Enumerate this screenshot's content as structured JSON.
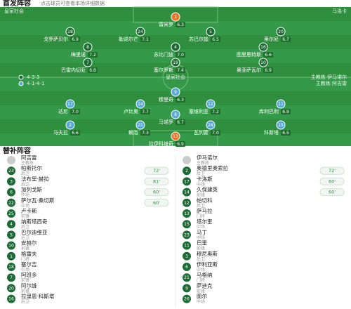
{
  "header": {
    "title": "首发阵容",
    "subtitle": "点击球员可查看本场详细数据"
  },
  "pitch": {
    "home_team": "皇家社会",
    "away_team": "马洛卡",
    "home_formation": "4-3-3",
    "away_formation": "4-1-4-1",
    "home_coach": "主教练 伊马诺尔",
    "away_coach": "主教练 阿吉雷",
    "center": "皇家社会",
    "home_lines": [
      [
        {
          "number": "1",
          "name": "雷米罗",
          "rating": "6.3"
        }
      ],
      [
        {
          "number": "18",
          "name": "戈罗萨贝尔",
          "rating": "6.9"
        },
        {
          "number": "24",
          "name": "勒诺尔芒",
          "rating": "7.1"
        },
        {
          "number": "5",
          "name": "苏巴尔迪",
          "rating": "6.5"
        },
        {
          "number": "20",
          "name": "蒂尔尼",
          "rating": "6.7"
        }
      ],
      [
        {
          "number": "8",
          "name": "梅里诺",
          "rating": "7.2"
        },
        {
          "number": "4",
          "name": "苏比门迪",
          "rating": "7.0"
        },
        {
          "number": "16",
          "name": "图里恩特斯",
          "rating": "6.6"
        }
      ],
      [
        {
          "number": "7",
          "name": "巴雷内切亚",
          "rating": "6.8"
        },
        {
          "number": "19",
          "name": "塞尔罗斯",
          "rating": "7.4"
        },
        {
          "number": "10",
          "name": "奥亚萨瓦尔",
          "rating": "6.9"
        }
      ]
    ],
    "away_lines": [
      [
        {
          "number": "9",
          "name": "穆里奇",
          "rating": "6.3"
        }
      ],
      [
        {
          "number": "17",
          "name": "达尼",
          "rating": "7.0"
        },
        {
          "number": "14",
          "name": "卢比奥",
          "rating": "7.7"
        },
        {
          "number": "12",
          "name": "塞维利亚",
          "rating": "7.2"
        },
        {
          "number": "11",
          "name": "库利巴利",
          "rating": "6.9"
        }
      ],
      [
        {
          "number": "8",
          "name": "马诺罗",
          "rating": "6.7"
        }
      ],
      [
        {
          "number": "2",
          "name": "马夫拉",
          "rating": "6.6"
        },
        {
          "number": "21",
          "name": "赖洛",
          "rating": "7.3"
        },
        {
          "number": "24",
          "name": "瓦列霍",
          "rating": "7.0"
        },
        {
          "number": "15",
          "name": "科斯塔",
          "rating": "6.5"
        }
      ],
      [
        {
          "number": "13",
          "name": "拉伊科维奇",
          "rating": "6.9"
        }
      ]
    ]
  },
  "subs": {
    "title": "替补阵容",
    "left": [
      {
        "number": "",
        "name": "阿吉雷",
        "position": "主教练",
        "minute": ""
      },
      {
        "number": "23",
        "name": "帕斯托尔",
        "position": "后卫",
        "minute": "72'"
      },
      {
        "number": "3",
        "name": "法布里·赫拉",
        "position": "后卫",
        "minute": "81'"
      },
      {
        "number": "6",
        "name": "加列戈斯",
        "position": "中场",
        "minute": "60'"
      },
      {
        "number": "22",
        "name": "萨尔瓦·桑切斯",
        "position": "中场",
        "minute": "60'"
      },
      {
        "number": "25",
        "name": "卢卡斯",
        "position": "前锋",
        "minute": ""
      },
      {
        "number": "4",
        "name": "纳斯塔西奇",
        "position": "后卫",
        "minute": ""
      },
      {
        "number": "5",
        "name": "巴尔迪维亚",
        "position": "后卫",
        "minute": ""
      },
      {
        "number": "10",
        "name": "安赫尔",
        "position": "前锋",
        "minute": ""
      },
      {
        "number": "1",
        "name": "格雷夫",
        "position": "门将",
        "minute": ""
      },
      {
        "number": "18",
        "name": "塞尔吉",
        "position": "中场",
        "minute": ""
      },
      {
        "number": "7",
        "name": "阿班多",
        "position": "前锋",
        "minute": ""
      },
      {
        "number": "20",
        "name": "阿尔维",
        "position": "前锋",
        "minute": ""
      },
      {
        "number": "16",
        "name": "拉里恩·科斯塔",
        "position": "后卫",
        "minute": ""
      }
    ],
    "right": [
      {
        "number": "",
        "name": "伊马诺尔",
        "position": "主教练",
        "minute": ""
      },
      {
        "number": "2",
        "name": "奥德里奥索拉",
        "position": "后卫",
        "minute": "72'"
      },
      {
        "number": "17",
        "name": "卡洛斯",
        "position": "中场",
        "minute": "60'"
      },
      {
        "number": "14",
        "name": "久保建英",
        "position": "前锋",
        "minute": "60'"
      },
      {
        "number": "12",
        "name": "帕切科",
        "position": "后卫",
        "minute": ""
      },
      {
        "number": "13",
        "name": "萨马拉",
        "position": "门将",
        "minute": ""
      },
      {
        "number": "15",
        "name": "塔尔奎",
        "position": "中场",
        "minute": ""
      },
      {
        "number": "23",
        "name": "马丁",
        "position": "中场",
        "minute": ""
      },
      {
        "number": "11",
        "name": "巴里",
        "position": "前锋",
        "minute": ""
      },
      {
        "number": "3",
        "name": "穆尼奥斯",
        "position": "后卫",
        "minute": ""
      },
      {
        "number": "6",
        "name": "伊利亚斯",
        "position": "中场",
        "minute": ""
      },
      {
        "number": "21",
        "name": "马格纳",
        "position": "门将",
        "minute": ""
      },
      {
        "number": "9",
        "name": "萨迪克",
        "position": "前锋",
        "minute": ""
      },
      {
        "number": "26",
        "name": "图尔",
        "position": "中场",
        "minute": ""
      }
    ]
  }
}
